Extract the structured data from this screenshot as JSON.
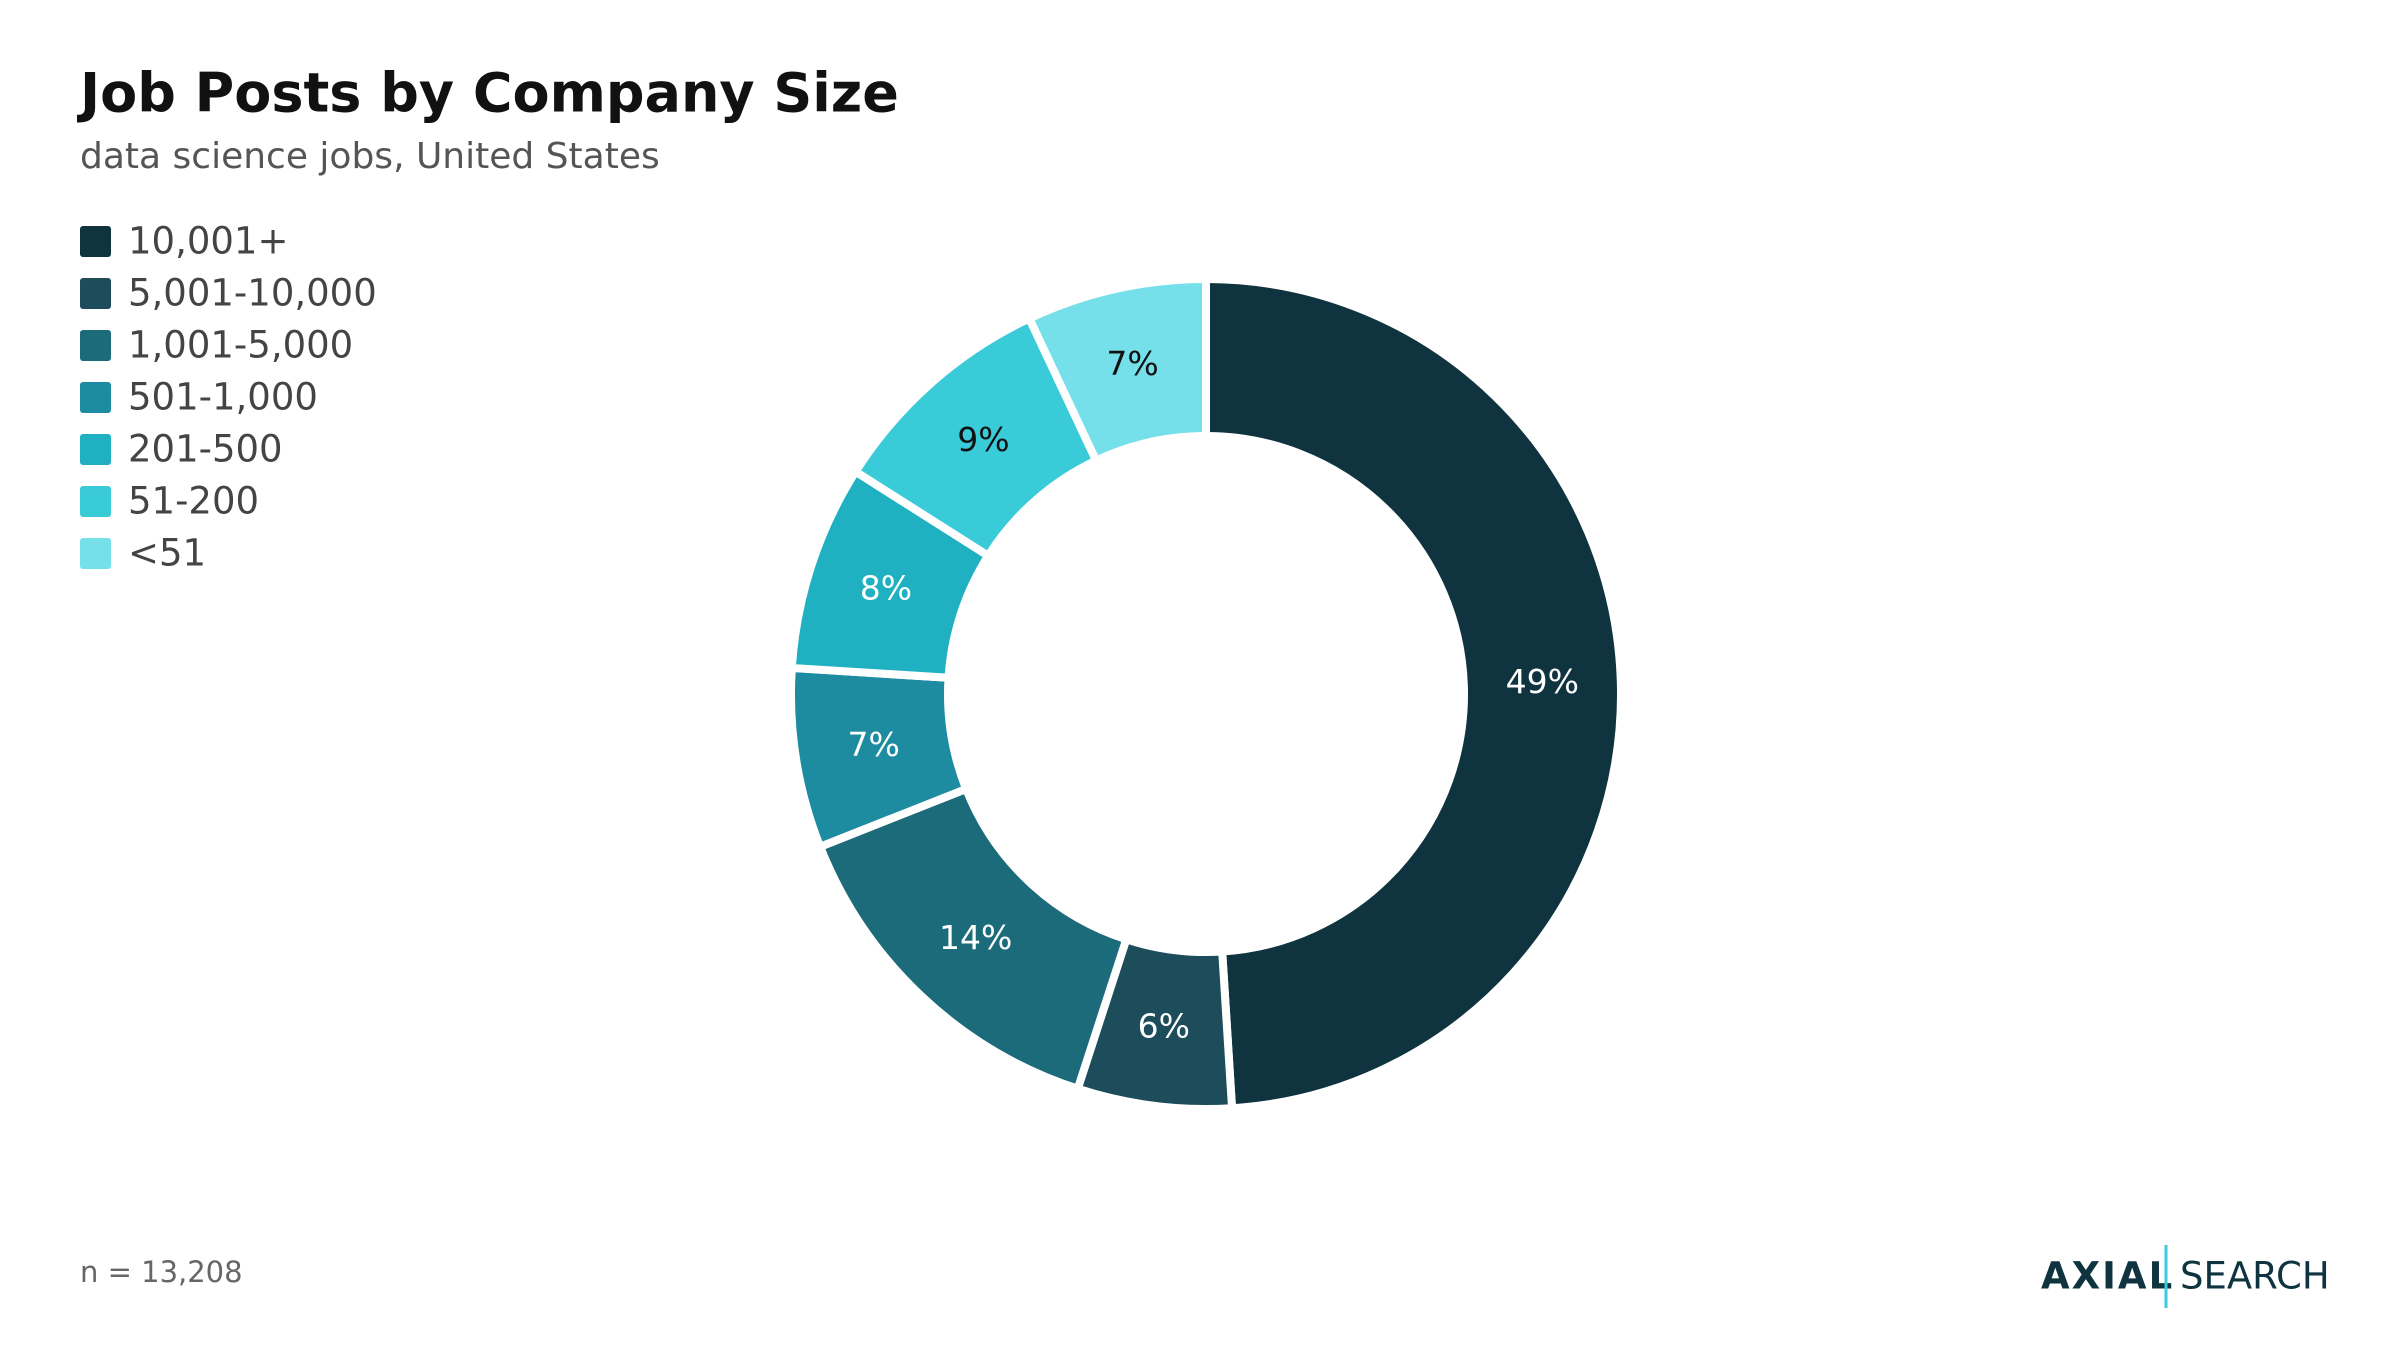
{
  "chart_data": {
    "type": "donut",
    "title": "Job Posts by Company Size",
    "subtitle": "data science jobs, United States",
    "categories": [
      "10,001+",
      "5,001-10,000",
      "1,001-5,000",
      "501-1,000",
      "201-500",
      "51-200",
      "<51"
    ],
    "values": [
      49,
      6,
      14,
      7,
      8,
      9,
      7
    ],
    "value_labels": [
      "49%",
      "6%",
      "14%",
      "7%",
      "8%",
      "9%",
      "7%"
    ],
    "colors": [
      "#0f333f",
      "#1d4c5a",
      "#1b6b7a",
      "#1d8ba0",
      "#1fb0c2",
      "#3acbd9",
      "#76e0ea"
    ],
    "legend": "upper left",
    "note": "n = 13,208"
  },
  "branding": {
    "logo_bold": "AXIAL",
    "logo_light": "SEARCH"
  }
}
